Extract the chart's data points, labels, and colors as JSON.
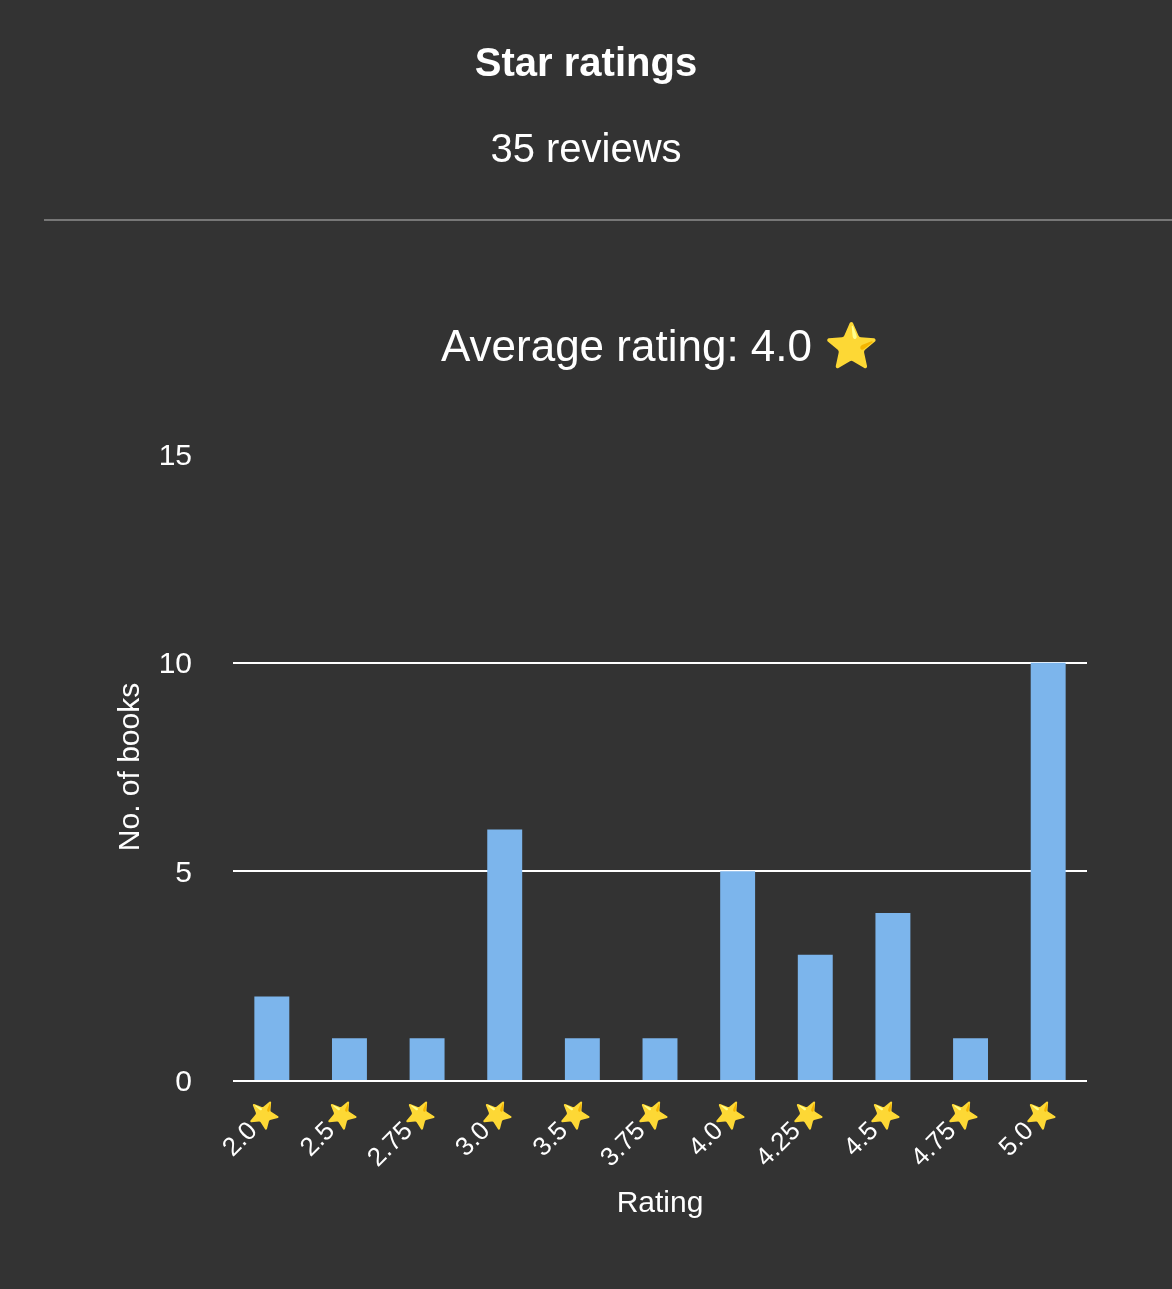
{
  "chart_data": {
    "type": "bar",
    "title": "Star ratings",
    "subtitle": "35 reviews",
    "xlabel": "Rating",
    "ylabel": "No. of books",
    "annotations": [
      "Average rating: 4.0 ⭐"
    ],
    "categories": [
      "2.0⭐",
      "2.5⭐",
      "2.75⭐",
      "3.0⭐",
      "3.5⭐",
      "3.75⭐",
      "4.0⭐",
      "4.25⭐",
      "4.5⭐",
      "4.75⭐",
      "5.0⭐"
    ],
    "values": [
      2,
      1,
      1,
      6,
      1,
      1,
      5,
      3,
      4,
      1,
      10
    ],
    "color": "#7cb5ec",
    "ylim": [
      0,
      15
    ],
    "yticks": [
      0,
      5,
      10,
      15
    ],
    "grid": "y",
    "legend": false
  }
}
